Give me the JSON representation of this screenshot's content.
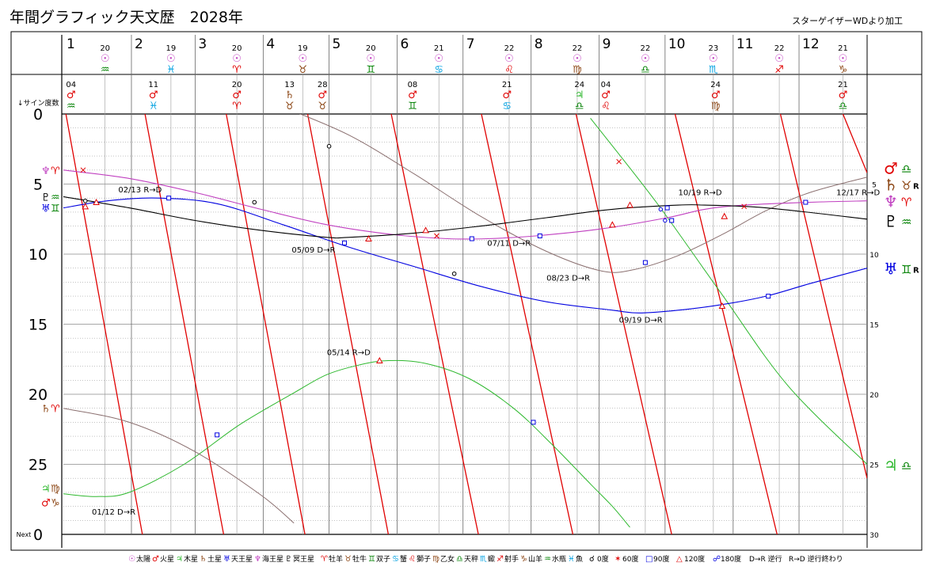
{
  "header": {
    "title": "年間グラフィック天文歴　2028年",
    "credit": "スターゲイザーWDより加工"
  },
  "chart_data": {
    "type": "line",
    "year": "2028",
    "y_axis": {
      "caption": "↓サイン度数",
      "ticks": [
        "0",
        "5",
        "10",
        "15",
        "20",
        "25"
      ],
      "next_label": "Next",
      "right_ticks": [
        "5",
        "10",
        "15",
        "20",
        "25",
        "30"
      ],
      "range": [
        0,
        30
      ]
    },
    "x_axis": {
      "months": [
        "1",
        "2",
        "3",
        "4",
        "5",
        "6",
        "7",
        "8",
        "9",
        "10",
        "11",
        "12"
      ],
      "range_days": [
        0,
        366
      ]
    },
    "sun_ingress": [
      {
        "day": "20",
        "glyph": "☉",
        "sign": "♒",
        "sign_color": "#008000"
      },
      {
        "day": "19",
        "glyph": "☉",
        "sign": "♓",
        "sign_color": "#00a0e0"
      },
      {
        "day": "20",
        "glyph": "☉",
        "sign": "♈",
        "sign_color": "#e00000"
      },
      {
        "day": "19",
        "glyph": "☉",
        "sign": "♉",
        "sign_color": "#8b4513"
      },
      {
        "day": "20",
        "glyph": "☉",
        "sign": "♊",
        "sign_color": "#008000"
      },
      {
        "day": "21",
        "glyph": "☉",
        "sign": "♋",
        "sign_color": "#00a0e0"
      },
      {
        "day": "22",
        "glyph": "☉",
        "sign": "♌",
        "sign_color": "#e00000"
      },
      {
        "day": "22",
        "glyph": "☉",
        "sign": "♍",
        "sign_color": "#8b4513"
      },
      {
        "day": "22",
        "glyph": "☉",
        "sign": "♎",
        "sign_color": "#008000"
      },
      {
        "day": "23",
        "glyph": "☉",
        "sign": "♏",
        "sign_color": "#00a0e0"
      },
      {
        "day": "22",
        "glyph": "☉",
        "sign": "♐",
        "sign_color": "#e00000"
      },
      {
        "day": "21",
        "glyph": "☉",
        "sign": "♑",
        "sign_color": "#8b4513"
      }
    ],
    "planet_ingress": [
      {
        "date": "04",
        "planet": "♂",
        "sign": "♒",
        "day_of_year": 3.5,
        "color": "#e00000",
        "sign_color": "#008000"
      },
      {
        "date": "11",
        "planet": "♂",
        "sign": "♓",
        "day_of_year": 41,
        "color": "#e00000",
        "sign_color": "#00a0e0"
      },
      {
        "date": "20",
        "planet": "♂",
        "sign": "♈",
        "day_of_year": 79,
        "color": "#e00000",
        "sign_color": "#e00000"
      },
      {
        "date": "13",
        "planet": "♄",
        "sign": "♉",
        "day_of_year": 103,
        "color": "#8b4513",
        "sign_color": "#8b4513"
      },
      {
        "date": "28",
        "planet": "♂",
        "sign": "♉",
        "day_of_year": 118,
        "color": "#e00000",
        "sign_color": "#8b4513"
      },
      {
        "date": "08",
        "planet": "♂",
        "sign": "♊",
        "day_of_year": 159,
        "color": "#e00000",
        "sign_color": "#008000"
      },
      {
        "date": "21",
        "planet": "♂",
        "sign": "♋",
        "day_of_year": 202,
        "color": "#e00000",
        "sign_color": "#00a0e0"
      },
      {
        "date": "24",
        "planet": "♃",
        "sign": "♎",
        "day_of_year": 235,
        "color": "#2eb82e",
        "sign_color": "#008000"
      },
      {
        "date": "04",
        "planet": "♂",
        "sign": "♌",
        "day_of_year": 247,
        "color": "#e00000",
        "sign_color": "#e00000"
      },
      {
        "date": "24",
        "planet": "♂",
        "sign": "♍",
        "day_of_year": 297,
        "color": "#e00000",
        "sign_color": "#8b4513"
      },
      {
        "date": "21",
        "planet": "♂",
        "sign": "♎",
        "day_of_year": 355,
        "color": "#e00000",
        "sign_color": "#008000"
      }
    ],
    "series": [
      {
        "name": "♂",
        "color": "#e00000",
        "width": 1.3,
        "mode": "mars",
        "segments": [
          [
            [
              0,
              -1.0
            ],
            [
              36,
              30.0
            ]
          ],
          [
            [
              36,
              -1.0
            ],
            [
              73,
              30.0
            ]
          ],
          [
            [
              73,
              -1.0
            ],
            [
              110,
              30.0
            ]
          ],
          [
            [
              110,
              -1.0
            ],
            [
              148,
              30.0
            ]
          ],
          [
            [
              148,
              -1.0
            ],
            [
              189,
              30.0
            ]
          ],
          [
            [
              189,
              -1.0
            ],
            [
              232,
              30.0
            ]
          ],
          [
            [
              232,
              -1.0
            ],
            [
              277,
              30.0
            ]
          ],
          [
            [
              277,
              -1.0
            ],
            [
              325,
              30.0
            ]
          ],
          [
            [
              325,
              -1.0
            ],
            [
              366,
              26.0
            ]
          ],
          [
            [
              355,
              0
            ],
            [
              366,
              4.2
            ]
          ]
        ]
      },
      {
        "name": "♃",
        "color": "#2eb82e",
        "width": 1.0,
        "points": [
          [
            0,
            27.1
          ],
          [
            15,
            27.3
          ],
          [
            30,
            27.0
          ],
          [
            55,
            25.0
          ],
          [
            80,
            22.2
          ],
          [
            105,
            19.9
          ],
          [
            120,
            18.6
          ],
          [
            135,
            17.9
          ],
          [
            148,
            17.6
          ],
          [
            165,
            17.8
          ],
          [
            185,
            18.9
          ],
          [
            205,
            21.0
          ],
          [
            222,
            23.5
          ],
          [
            240,
            26.4
          ],
          [
            250,
            28.0
          ],
          [
            258,
            29.5
          ]
        ],
        "segments2": [
          [
            [
              240,
              0.3
            ],
            [
              270,
              6.3
            ],
            [
              300,
              12.9
            ],
            [
              330,
              19.4
            ],
            [
              366,
              25.0
            ]
          ]
        ]
      },
      {
        "name": "♄",
        "color": "#8b7070",
        "width": 1.0,
        "points": [
          [
            0,
            21.0
          ],
          [
            30,
            22.0
          ],
          [
            60,
            24.1
          ],
          [
            90,
            27.2
          ],
          [
            105,
            29.2
          ]
        ],
        "segments2": [
          [
            [
              100,
              -0.5
            ],
            [
              130,
              1.5
            ],
            [
              160,
              4.3
            ],
            [
              190,
              7.3
            ],
            [
              220,
              9.8
            ],
            [
              245,
              11.2
            ],
            [
              260,
              11.1
            ],
            [
              280,
              10.1
            ],
            [
              300,
              8.6
            ],
            [
              320,
              6.9
            ],
            [
              340,
              5.6
            ],
            [
              366,
              4.5
            ]
          ]
        ]
      },
      {
        "name": "♅",
        "color": "#0000e0",
        "width": 1.1,
        "points": [
          [
            0,
            6.7
          ],
          [
            20,
            6.2
          ],
          [
            43,
            6.0
          ],
          [
            70,
            6.4
          ],
          [
            100,
            7.9
          ],
          [
            130,
            9.5
          ],
          [
            160,
            10.9
          ],
          [
            190,
            12.3
          ],
          [
            220,
            13.4
          ],
          [
            250,
            14.0
          ],
          [
            262,
            14.2
          ],
          [
            280,
            14.0
          ],
          [
            300,
            13.6
          ],
          [
            320,
            13.0
          ],
          [
            340,
            12.1
          ],
          [
            366,
            11.0
          ]
        ]
      },
      {
        "name": "♆",
        "color": "#c040c0",
        "width": 1.1,
        "points": [
          [
            0,
            4.0
          ],
          [
            30,
            4.6
          ],
          [
            60,
            5.6
          ],
          [
            90,
            6.8
          ],
          [
            120,
            7.9
          ],
          [
            150,
            8.6
          ],
          [
            175,
            8.9
          ],
          [
            193,
            8.9
          ],
          [
            215,
            8.7
          ],
          [
            245,
            8.2
          ],
          [
            275,
            7.4
          ],
          [
            292,
            6.8
          ],
          [
            310,
            6.5
          ],
          [
            340,
            6.3
          ],
          [
            366,
            6.2
          ]
        ]
      },
      {
        "name": "♇",
        "color": "#000000",
        "width": 1.1,
        "points": [
          [
            0,
            5.9
          ],
          [
            30,
            6.7
          ],
          [
            60,
            7.6
          ],
          [
            90,
            8.3
          ],
          [
            120,
            8.8
          ],
          [
            130,
            8.8
          ],
          [
            160,
            8.5
          ],
          [
            190,
            8.0
          ],
          [
            220,
            7.4
          ],
          [
            250,
            6.8
          ],
          [
            280,
            6.5
          ],
          [
            292,
            6.5
          ],
          [
            320,
            6.7
          ],
          [
            366,
            7.5
          ]
        ]
      }
    ],
    "station_labels": [
      {
        "text": "01/12  D→R",
        "day": 13,
        "deg": 28.6
      },
      {
        "text": "02/13  R→D",
        "day": 25,
        "deg": 5.6
      },
      {
        "text": "05/09  D→R",
        "day": 104,
        "deg": 9.9
      },
      {
        "text": "05/14  R→D",
        "day": 120,
        "deg": 17.2
      },
      {
        "text": "07/11  D→R",
        "day": 193,
        "deg": 9.4
      },
      {
        "text": "08/23  D→R",
        "day": 220,
        "deg": 11.9
      },
      {
        "text": "09/19  D→R",
        "day": 253,
        "deg": 14.9
      },
      {
        "text": "10/19  R→D",
        "day": 280,
        "deg": 5.8
      },
      {
        "text": "12/17  R→D",
        "day": 352,
        "deg": 5.8
      }
    ],
    "aspect_marks": [
      {
        "type": "0",
        "day": 10,
        "deg": 6.2
      },
      {
        "type": "0",
        "day": 87,
        "deg": 6.3
      },
      {
        "type": "0",
        "day": 121,
        "deg": 2.3
      },
      {
        "type": "0",
        "day": 178,
        "deg": 11.4
      },
      {
        "type": "60",
        "day": 9,
        "deg": 4.0
      },
      {
        "type": "60",
        "day": 170,
        "deg": 8.7
      },
      {
        "type": "60",
        "day": 253,
        "deg": 3.4
      },
      {
        "type": "60",
        "day": 310,
        "deg": 6.6
      },
      {
        "type": "90",
        "day": 48,
        "deg": 6.0
      },
      {
        "type": "90",
        "day": 70,
        "deg": 22.9
      },
      {
        "type": "90",
        "day": 128,
        "deg": 9.2
      },
      {
        "type": "90",
        "day": 186,
        "deg": 8.9
      },
      {
        "type": "90",
        "day": 217,
        "deg": 8.7
      },
      {
        "type": "90",
        "day": 214,
        "deg": 22.0
      },
      {
        "type": "90",
        "day": 275,
        "deg": 6.7
      },
      {
        "type": "90",
        "day": 277,
        "deg": 7.6
      },
      {
        "type": "90",
        "day": 265,
        "deg": 10.6
      },
      {
        "type": "90",
        "day": 338,
        "deg": 6.3
      },
      {
        "type": "90",
        "day": 321,
        "deg": 13.0
      },
      {
        "type": "120",
        "day": 10,
        "deg": 6.6
      },
      {
        "type": "120",
        "day": 15,
        "deg": 6.3
      },
      {
        "type": "120",
        "day": 139,
        "deg": 8.9
      },
      {
        "type": "120",
        "day": 144,
        "deg": 17.6
      },
      {
        "type": "120",
        "day": 165,
        "deg": 8.3
      },
      {
        "type": "120",
        "day": 250,
        "deg": 7.9
      },
      {
        "type": "120",
        "day": 258,
        "deg": 6.5
      },
      {
        "type": "120",
        "day": 300,
        "deg": 13.7
      },
      {
        "type": "120",
        "day": 301,
        "deg": 7.3
      },
      {
        "type": "180",
        "day": 272,
        "deg": 6.8
      },
      {
        "type": "180",
        "day": 274,
        "deg": 7.6
      }
    ],
    "left_start_labels": [
      {
        "glyphs": [
          "♆",
          "♈"
        ],
        "colors": [
          "#c040c0",
          "#e00000"
        ],
        "deg": 4.0
      },
      {
        "glyphs": [
          "♇",
          "♒"
        ],
        "colors": [
          "#000000",
          "#008000"
        ],
        "deg": 5.9
      },
      {
        "glyphs": [
          "♅",
          "♊"
        ],
        "colors": [
          "#0000e0",
          "#008000"
        ],
        "deg": 6.7
      },
      {
        "glyphs": [
          "♄",
          "♈"
        ],
        "colors": [
          "#8b4513",
          "#e00000"
        ],
        "deg": 21.0
      },
      {
        "glyphs": [
          "♃",
          "♍"
        ],
        "colors": [
          "#2eb82e",
          "#8b4513"
        ],
        "deg": 26.7
      },
      {
        "glyphs": [
          "♂",
          "♑"
        ],
        "colors": [
          "#e00000",
          "#8b4513"
        ],
        "deg": 27.7
      }
    ],
    "right_end_labels": [
      {
        "glyphs": [
          "♂",
          "♎"
        ],
        "colors": [
          "#e00000",
          "#008000"
        ],
        "suffix": "",
        "deg": 3.8
      },
      {
        "glyphs": [
          "♄",
          "♉"
        ],
        "colors": [
          "#8b4513",
          "#8b4513"
        ],
        "suffix": "R",
        "deg": 5.0
      },
      {
        "glyphs": [
          "♆",
          "♈"
        ],
        "colors": [
          "#c040c0",
          "#e00000"
        ],
        "suffix": "",
        "deg": 6.2
      },
      {
        "glyphs": [
          "♇",
          "♒"
        ],
        "colors": [
          "#000000",
          "#008000"
        ],
        "suffix": "",
        "deg": 7.6
      },
      {
        "glyphs": [
          "♅",
          "♊"
        ],
        "colors": [
          "#0000e0",
          "#008000"
        ],
        "suffix": "R",
        "deg": 11.0
      },
      {
        "glyphs": [
          "♃",
          "♎"
        ],
        "colors": [
          "#2eb82e",
          "#008000"
        ],
        "suffix": "",
        "deg": 25.0
      }
    ]
  },
  "legend": [
    {
      "glyph": "☉",
      "text": "太陽",
      "color": "#c040c0"
    },
    {
      "glyph": "♂",
      "text": "火星",
      "color": "#e00000"
    },
    {
      "glyph": "♃",
      "text": "木星",
      "color": "#2eb82e"
    },
    {
      "glyph": "♄",
      "text": "土星",
      "color": "#8b4513"
    },
    {
      "glyph": "♅",
      "text": "天王星",
      "color": "#0000e0"
    },
    {
      "glyph": "♆",
      "text": "海王星",
      "color": "#c040c0"
    },
    {
      "glyph": "♇",
      "text": "冥王星",
      "color": "#000000"
    },
    {
      "glyph": "♈",
      "text": "牡羊",
      "color": "#e00000"
    },
    {
      "glyph": "♉",
      "text": "牡牛",
      "color": "#8b4513"
    },
    {
      "glyph": "♊",
      "text": "双子",
      "color": "#008000"
    },
    {
      "glyph": "♋",
      "text": "蟹",
      "color": "#00a0e0"
    },
    {
      "glyph": "♌",
      "text": "獅子",
      "color": "#e00000"
    },
    {
      "glyph": "♍",
      "text": "乙女",
      "color": "#8b4513"
    },
    {
      "glyph": "♎",
      "text": "天秤",
      "color": "#008000"
    },
    {
      "glyph": "♏",
      "text": "蠍",
      "color": "#00a0e0"
    },
    {
      "glyph": "♐",
      "text": "射手",
      "color": "#e00000"
    },
    {
      "glyph": "♑",
      "text": "山羊",
      "color": "#8b4513"
    },
    {
      "glyph": "♒",
      "text": "水瓶",
      "color": "#008000"
    },
    {
      "glyph": "♓",
      "text": "魚",
      "color": "#00a0e0"
    }
  ],
  "aspect_legend": [
    {
      "glyph": "☌",
      "text": "0度",
      "color": "#000000"
    },
    {
      "glyph": "✶",
      "text": "60度",
      "color": "#e00000"
    },
    {
      "glyph": "□",
      "text": "90度",
      "color": "#0000e0"
    },
    {
      "glyph": "△",
      "text": "120度",
      "color": "#e00000"
    },
    {
      "glyph": "☍",
      "text": "180度",
      "color": "#0000e0"
    },
    {
      "glyph": "",
      "text": "D→R 逆行",
      "color": "#000000"
    },
    {
      "glyph": "",
      "text": "R→D 逆行終わり",
      "color": "#000000"
    }
  ]
}
